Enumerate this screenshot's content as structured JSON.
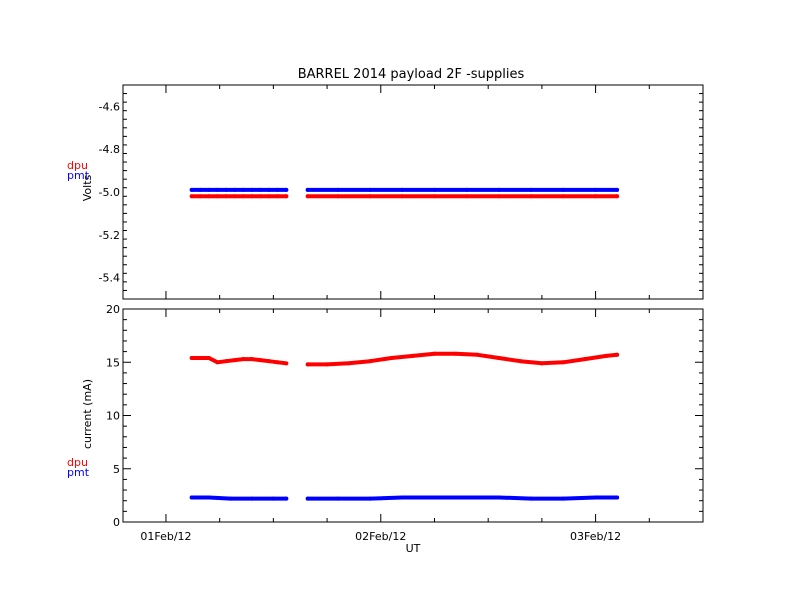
{
  "title": "BARREL 2014 payload 2F -supplies",
  "colors": {
    "dpu": "#ff0000",
    "pmt": "#0000ff",
    "axis": "#000000"
  },
  "chart_data": [
    {
      "type": "scatter",
      "panel": "top",
      "title": "BARREL 2014 payload 2F -supplies",
      "ylabel": "Volts",
      "xlim": [
        -0.2,
        2.5
      ],
      "ylim": [
        -5.5,
        -4.5
      ],
      "yticks": [
        -4.6,
        -4.8,
        -5.0,
        -5.2,
        -5.4
      ],
      "ytick_labels": [
        "-4.6",
        "-4.8",
        "-5.0",
        "-5.2",
        "-5.4"
      ],
      "legend": [
        "dpu",
        "pmt"
      ],
      "legend_placement": "left-outside",
      "series": [
        {
          "name": "dpu",
          "color": "#ff0000",
          "segments": [
            {
              "x": [
                0.12,
                0.16,
                0.2,
                0.24,
                0.28,
                0.32,
                0.36,
                0.4,
                0.44,
                0.48,
                0.52,
                0.56
              ],
              "y": [
                -5.02,
                -5.02,
                -5.02,
                -5.02,
                -5.02,
                -5.02,
                -5.02,
                -5.02,
                -5.02,
                -5.02,
                -5.02,
                -5.02
              ]
            },
            {
              "x": [
                0.66,
                0.8,
                0.95,
                1.1,
                1.25,
                1.4,
                1.55,
                1.7,
                1.85,
                2.0,
                2.1
              ],
              "y": [
                -5.02,
                -5.02,
                -5.02,
                -5.02,
                -5.02,
                -5.02,
                -5.02,
                -5.02,
                -5.02,
                -5.02,
                -5.02
              ]
            }
          ]
        },
        {
          "name": "pmt",
          "color": "#0000ff",
          "segments": [
            {
              "x": [
                0.12,
                0.16,
                0.2,
                0.24,
                0.28,
                0.32,
                0.36,
                0.4,
                0.44,
                0.48,
                0.52,
                0.56
              ],
              "y": [
                -4.99,
                -4.99,
                -4.99,
                -4.99,
                -4.99,
                -4.99,
                -4.99,
                -4.99,
                -4.99,
                -4.99,
                -4.99,
                -4.99
              ]
            },
            {
              "x": [
                0.66,
                0.8,
                0.95,
                1.1,
                1.25,
                1.4,
                1.55,
                1.7,
                1.85,
                2.0,
                2.1
              ],
              "y": [
                -4.99,
                -4.99,
                -4.99,
                -4.99,
                -4.99,
                -4.99,
                -4.99,
                -4.99,
                -4.99,
                -4.99,
                -4.99
              ]
            }
          ]
        }
      ]
    },
    {
      "type": "scatter",
      "panel": "bottom",
      "xlabel": "UT",
      "ylabel": "current (mA)",
      "xlim": [
        -0.2,
        2.5
      ],
      "ylim": [
        0,
        20
      ],
      "yticks": [
        0,
        5,
        10,
        15,
        20
      ],
      "ytick_labels": [
        "0",
        "5",
        "10",
        "15",
        "20"
      ],
      "xticks": [
        0,
        1,
        2
      ],
      "xtick_labels": [
        "01Feb/12",
        "02Feb/12",
        "03Feb/12"
      ],
      "legend": [
        "dpu",
        "pmt"
      ],
      "legend_placement": "left-outside",
      "series": [
        {
          "name": "dpu",
          "color": "#ff0000",
          "segments": [
            {
              "x": [
                0.12,
                0.16,
                0.2,
                0.24,
                0.28,
                0.32,
                0.36,
                0.4,
                0.44,
                0.48,
                0.52,
                0.56
              ],
              "y": [
                15.4,
                15.4,
                15.4,
                15.0,
                15.1,
                15.2,
                15.3,
                15.3,
                15.2,
                15.1,
                15.0,
                14.9
              ]
            },
            {
              "x": [
                0.66,
                0.75,
                0.85,
                0.95,
                1.05,
                1.15,
                1.25,
                1.35,
                1.45,
                1.55,
                1.65,
                1.75,
                1.85,
                1.95,
                2.05,
                2.1
              ],
              "y": [
                14.8,
                14.8,
                14.9,
                15.1,
                15.4,
                15.6,
                15.8,
                15.8,
                15.7,
                15.4,
                15.1,
                14.9,
                15.0,
                15.3,
                15.6,
                15.7
              ]
            }
          ]
        },
        {
          "name": "pmt",
          "color": "#0000ff",
          "segments": [
            {
              "x": [
                0.12,
                0.2,
                0.3,
                0.4,
                0.5,
                0.56
              ],
              "y": [
                2.3,
                2.3,
                2.2,
                2.2,
                2.2,
                2.2
              ]
            },
            {
              "x": [
                0.66,
                0.8,
                0.95,
                1.1,
                1.25,
                1.4,
                1.55,
                1.7,
                1.85,
                2.0,
                2.1
              ],
              "y": [
                2.2,
                2.2,
                2.2,
                2.3,
                2.3,
                2.3,
                2.3,
                2.2,
                2.2,
                2.3,
                2.3
              ]
            }
          ]
        }
      ]
    }
  ]
}
